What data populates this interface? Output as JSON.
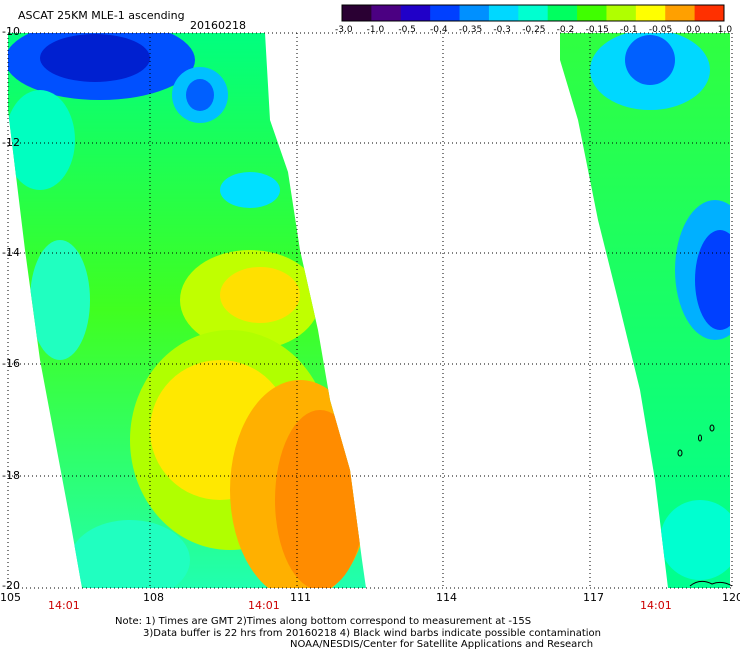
{
  "header": {
    "title": "ASCAT 25KM MLE-1 ascending",
    "date": "20160218"
  },
  "colorbar": {
    "labels": [
      "-3.0",
      "-1.0",
      "-0.5",
      "-0.4",
      "-0.35",
      "-0.3",
      "-0.25",
      "-0.2",
      "-0.15",
      "-0.1",
      "-0.05",
      "0.0",
      "1.0"
    ],
    "colors": [
      "#2a0033",
      "#4b0082",
      "#2000c8",
      "#0040ff",
      "#0090ff",
      "#00d8ff",
      "#00ffd0",
      "#00ff60",
      "#40ff00",
      "#b0ff00",
      "#ffff00",
      "#ffa000",
      "#ff3000"
    ]
  },
  "axes": {
    "x_ticks": [
      "105",
      "108",
      "111",
      "114",
      "117",
      "120"
    ],
    "y_ticks": [
      "-10",
      "-12",
      "-14",
      "-16",
      "-18",
      "-20"
    ],
    "grid": true
  },
  "pass_times": [
    "14:01",
    "14:01",
    "14:01"
  ],
  "footer": {
    "line1": "Note: 1) Times are GMT 2)Times along bottom correspond to measurement at -15S",
    "line2": "3)Data buffer is 22 hrs from 20160218 4) Black wind barbs indicate possible contamination",
    "line3": "NOAA/NESDIS/Center for Satellite Applications and Research"
  },
  "colors": {
    "grid": "#000000",
    "time_label": "#cc0000",
    "coastline": "#000000"
  }
}
